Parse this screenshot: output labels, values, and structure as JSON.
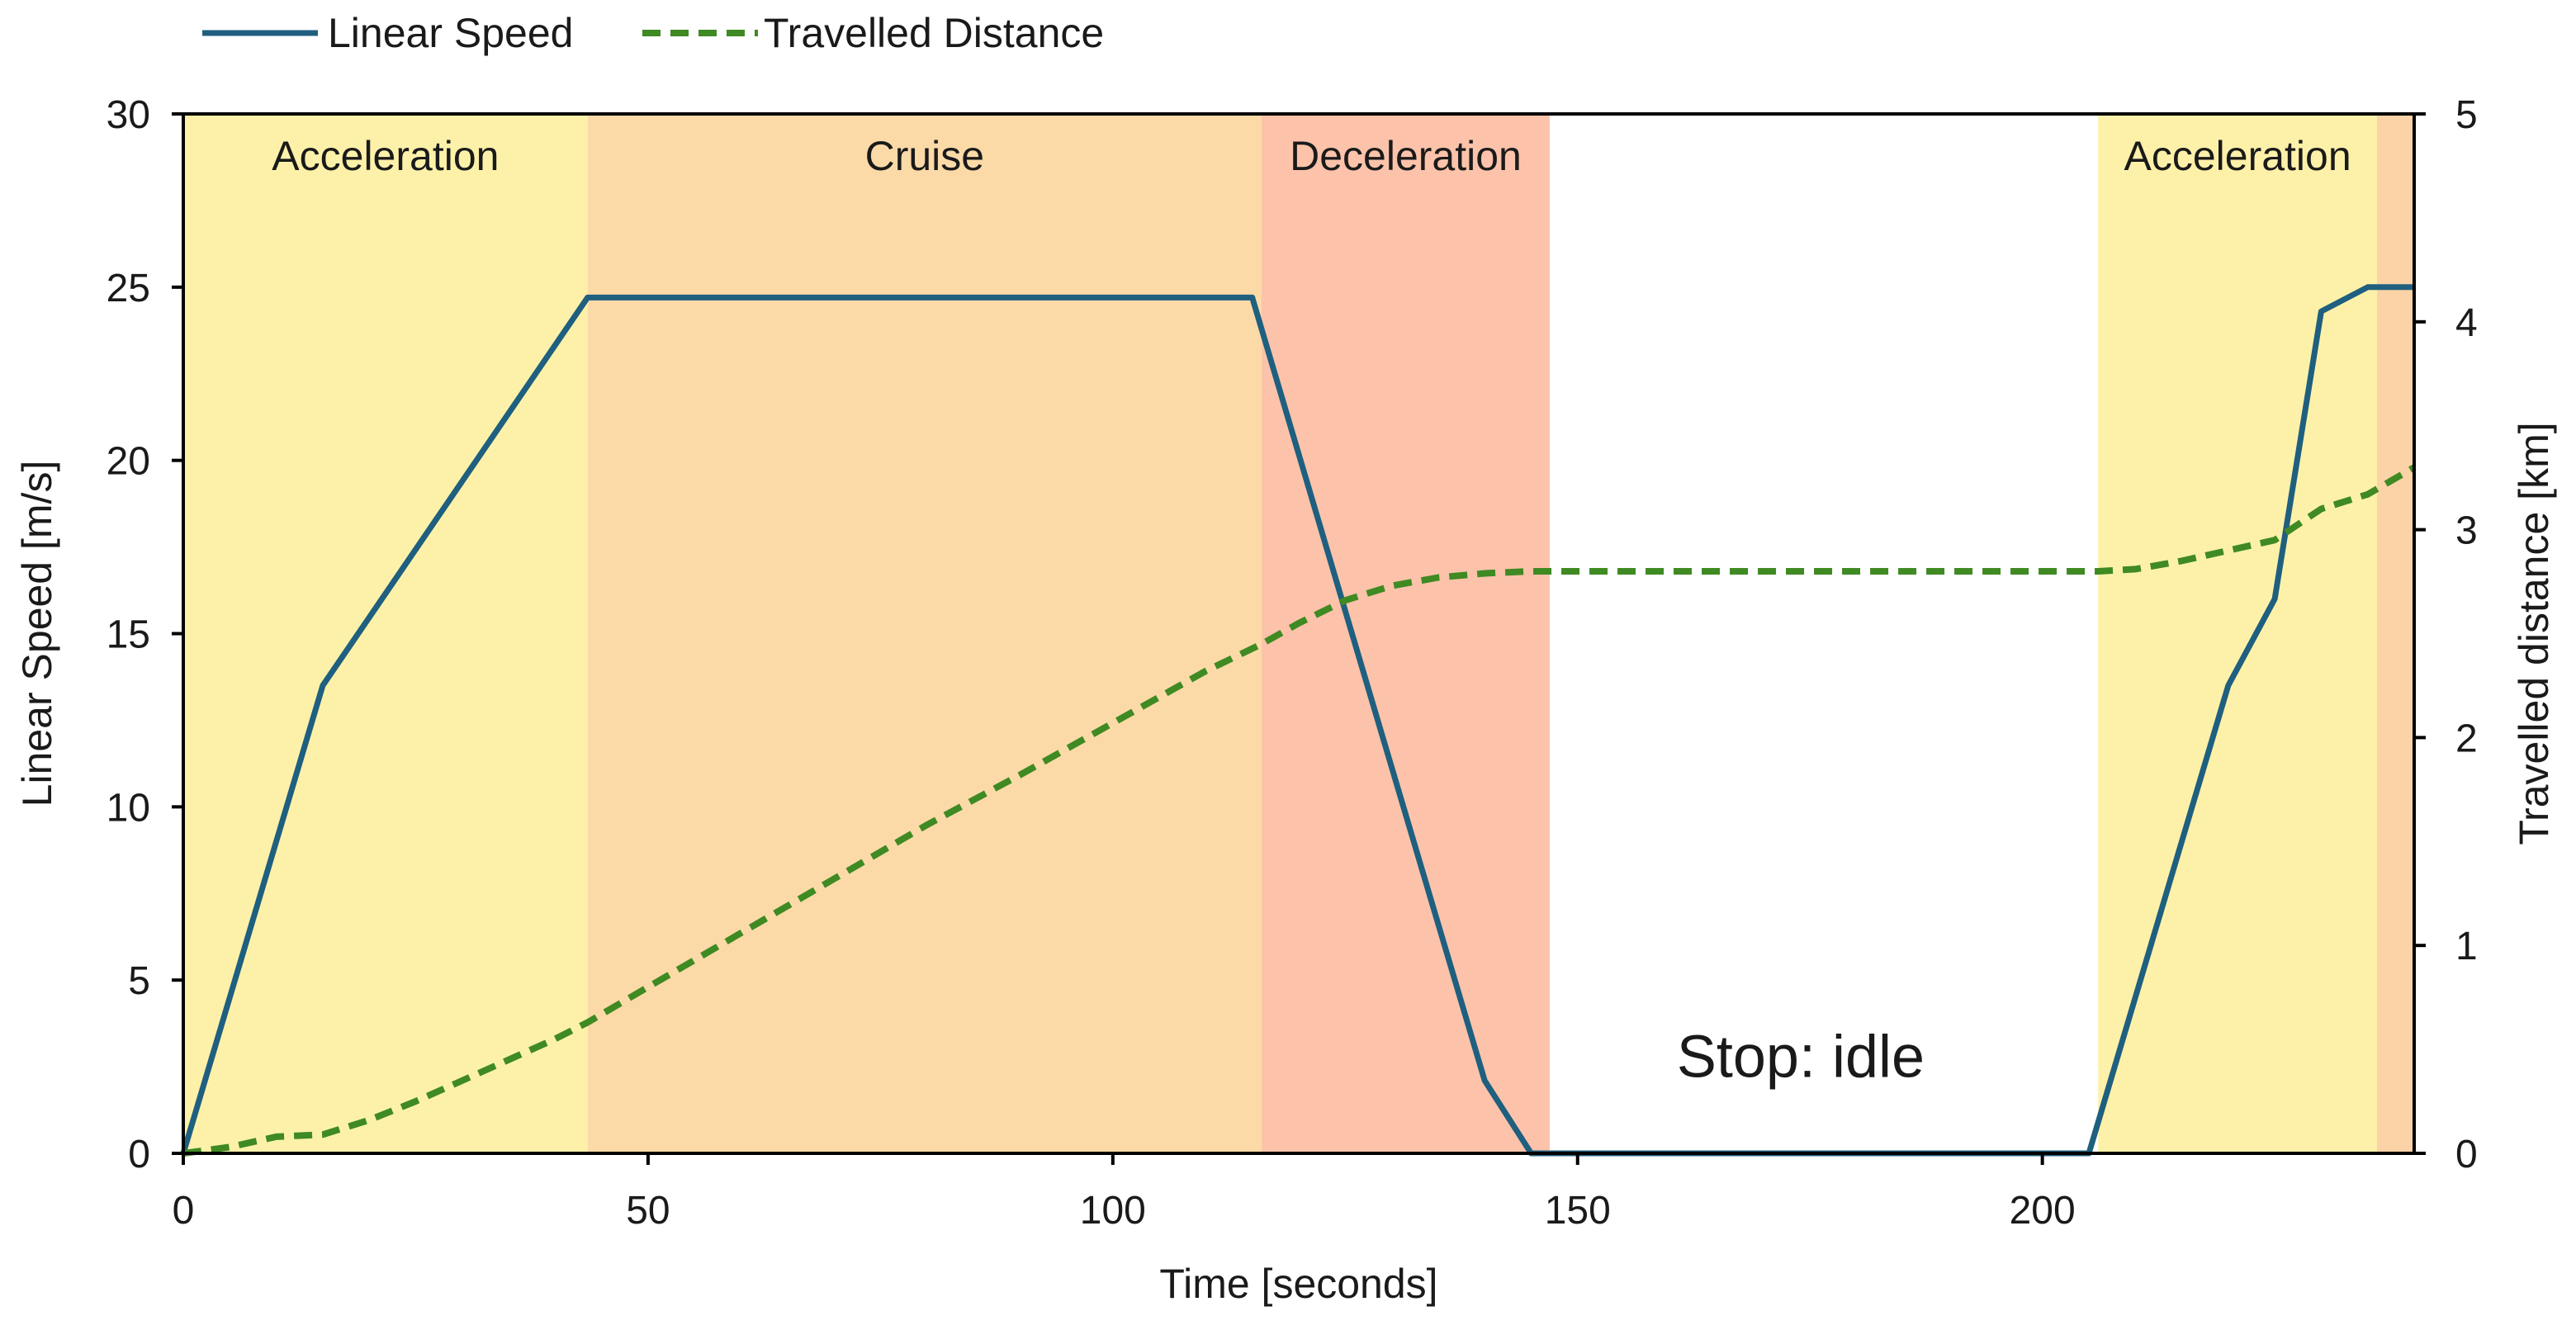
{
  "chart_data": {
    "type": "line",
    "x_label": "Time [seconds]",
    "y_label_left": "Linear Speed [m/s]",
    "y_label_right": "Travelled distance [km]",
    "xlim": [
      0,
      240
    ],
    "ylim_left": [
      0,
      30
    ],
    "ylim_right": [
      0,
      5
    ],
    "x_ticks": [
      0,
      50,
      100,
      150,
      200
    ],
    "y_ticks_left": [
      0,
      5,
      10,
      15,
      20,
      25,
      30
    ],
    "y_ticks_right": [
      0,
      1,
      2,
      3,
      4,
      5
    ],
    "grid": false,
    "legend_position": "top-left",
    "phases": [
      {
        "label": "Acceleration",
        "start": 0,
        "end": 43.5,
        "color": "#fdf1a9"
      },
      {
        "label": "Cruise",
        "start": 43.5,
        "end": 116,
        "color": "#fcdaa8"
      },
      {
        "label": "Deceleration",
        "start": 116,
        "end": 147,
        "color": "#fcc3aa"
      },
      {
        "label": "Acceleration",
        "start": 206,
        "end": 236,
        "color": "#fdf1a9"
      },
      {
        "label": "",
        "start": 236,
        "end": 240,
        "color": "#fcd3a6"
      }
    ],
    "annotation": {
      "text": "Stop: idle",
      "x": 174,
      "y": 2.2
    },
    "series": [
      {
        "name": "Linear Speed",
        "axis": "left",
        "style": "solid",
        "color": "#1f5f7f",
        "x": [
          0,
          15,
          43.5,
          115,
          140,
          145,
          205,
          220,
          225,
          230,
          235,
          240
        ],
        "y": [
          0,
          13.5,
          24.7,
          24.7,
          2.1,
          0,
          0,
          13.5,
          16,
          24.3,
          25,
          25
        ]
      },
      {
        "name": "Travelled Distance",
        "axis": "right",
        "style": "dashed",
        "color": "#3f8a23",
        "x": [
          0,
          5,
          10,
          15,
          20,
          25,
          30,
          35,
          40,
          43.5,
          50,
          60,
          70,
          80,
          90,
          100,
          110,
          116,
          120,
          125,
          130,
          135,
          140,
          145,
          150,
          160,
          180,
          200,
          206,
          210,
          215,
          220,
          225,
          230,
          235,
          240
        ],
        "y": [
          0,
          0.03,
          0.08,
          0.09,
          0.16,
          0.25,
          0.35,
          0.45,
          0.55,
          0.63,
          0.8,
          1.06,
          1.32,
          1.58,
          1.82,
          2.07,
          2.32,
          2.45,
          2.55,
          2.66,
          2.73,
          2.77,
          2.79,
          2.8,
          2.8,
          2.8,
          2.8,
          2.8,
          2.8,
          2.81,
          2.85,
          2.9,
          2.95,
          3.1,
          3.17,
          3.3
        ]
      }
    ]
  }
}
